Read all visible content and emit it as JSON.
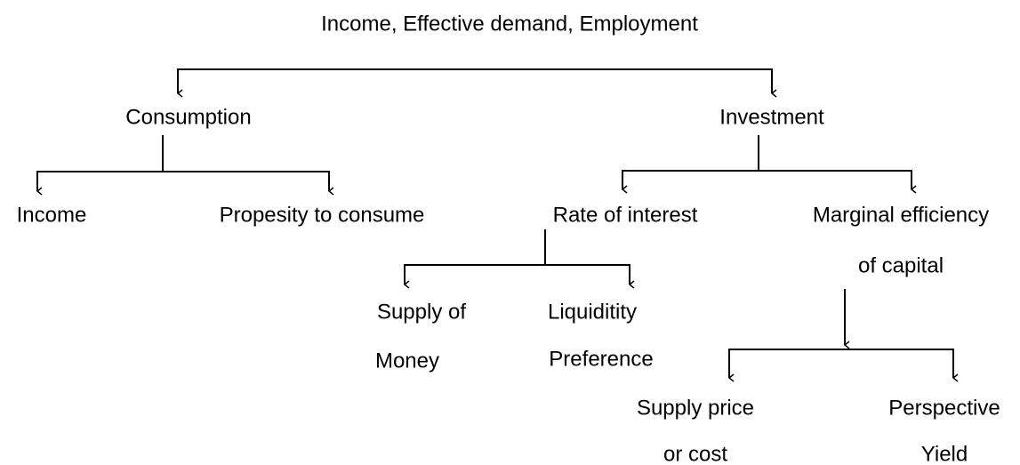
{
  "title": "Income, Effective demand, Employment",
  "nodes": [
    {
      "lines": [
        "Consumption"
      ]
    },
    {
      "lines": [
        "Investment"
      ]
    },
    {
      "lines": [
        "Income"
      ]
    },
    {
      "lines": [
        "Propesity to consume"
      ]
    },
    {
      "lines": [
        "Rate of interest"
      ]
    },
    {
      "lines": [
        "Marginal efficiency",
        "of capital"
      ]
    },
    {
      "lines": [
        "Supply of",
        "Money"
      ]
    },
    {
      "lines": [
        "Liquiditity",
        "Preference"
      ]
    },
    {
      "lines": [
        "Supply price",
        "or cost"
      ]
    },
    {
      "lines": [
        "Perspective",
        "Yield"
      ]
    }
  ]
}
